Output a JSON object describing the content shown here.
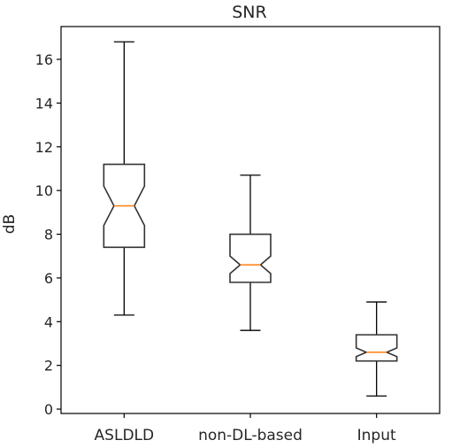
{
  "chart_data": {
    "type": "boxplot",
    "title": "SNR",
    "xlabel": "",
    "ylabel": "dB",
    "notched": true,
    "ylim": [
      -0.2,
      17.5
    ],
    "yticks": [
      0,
      2,
      4,
      6,
      8,
      10,
      12,
      14,
      16
    ],
    "ytick_labels": [
      "0",
      "2",
      "4",
      "6",
      "8",
      "10",
      "12",
      "14",
      "16"
    ],
    "grid": false,
    "categories": [
      "ASLDLD",
      "non-DL-based",
      "Input"
    ],
    "boxes": [
      {
        "whisker_low": 4.3,
        "q1": 7.4,
        "notch_low": 8.4,
        "median": 9.3,
        "notch_high": 10.2,
        "q3": 11.2,
        "whisker_high": 16.8
      },
      {
        "whisker_low": 3.6,
        "q1": 5.8,
        "notch_low": 6.2,
        "median": 6.6,
        "notch_high": 7.0,
        "q3": 8.0,
        "whisker_high": 10.7
      },
      {
        "whisker_low": 0.6,
        "q1": 2.2,
        "notch_low": 2.4,
        "median": 2.6,
        "notch_high": 2.8,
        "q3": 3.4,
        "whisker_high": 4.9
      }
    ],
    "colors": {
      "box": "#333333",
      "median": "#ff7f0e",
      "axis": "#000000"
    }
  }
}
